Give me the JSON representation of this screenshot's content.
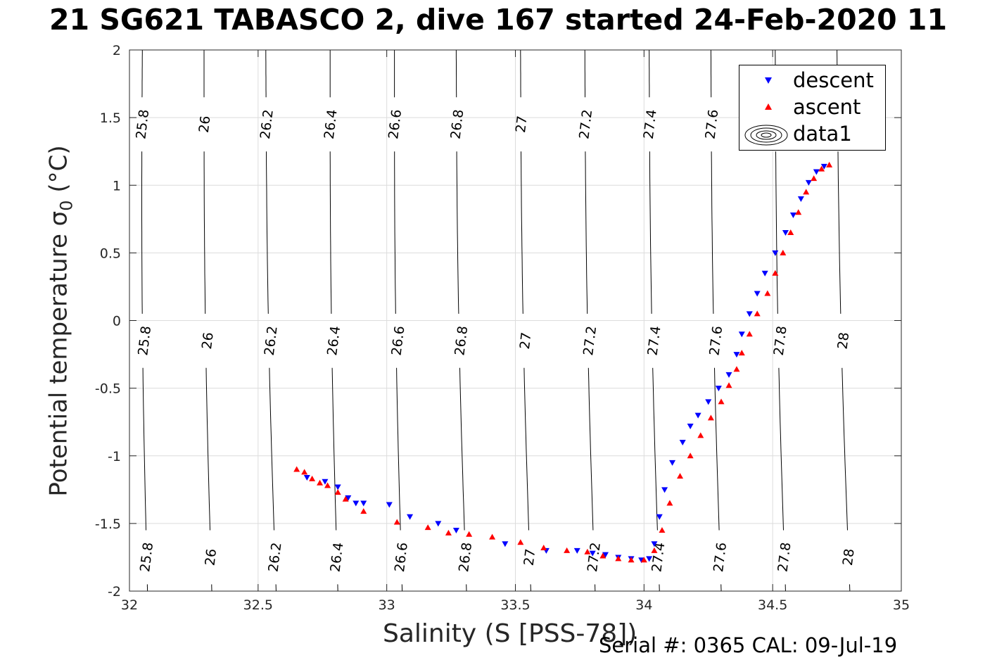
{
  "title": "21 SG621 TABASCO 2, dive 167 started 24-Feb-2020 11",
  "footer": "Serial #: 0365  CAL: 09-Jul-19",
  "chart_data": {
    "type": "scatter",
    "title": "21 SG621 TABASCO 2, dive 167 started 24-Feb-2020 11",
    "xlabel": "Salinity (S [PSS-78])",
    "ylabel_main": "Potential temperature σ",
    "ylabel_sub": "0",
    "ylabel_unit": " (°C)",
    "xlim": [
      32,
      35
    ],
    "ylim": [
      -2,
      2
    ],
    "xticks": [
      32,
      32.5,
      33,
      33.5,
      34,
      34.5,
      35
    ],
    "yticks": [
      2,
      1.5,
      1,
      0.5,
      0,
      -0.5,
      -1,
      -1.5,
      -2
    ],
    "grid": true,
    "legend_position": "top-right",
    "legend": [
      "descent",
      "ascent",
      "data1"
    ],
    "contours": {
      "levels": [
        25.8,
        26,
        26.2,
        26.4,
        26.6,
        26.8,
        27,
        27.2,
        27.4,
        27.6,
        27.8,
        28
      ],
      "salinity_at_bottom": [
        32.07,
        32.32,
        32.57,
        32.81,
        33.06,
        33.31,
        33.56,
        33.81,
        34.06,
        34.3,
        34.55,
        34.8
      ],
      "salinity_at_top": [
        32.05,
        32.29,
        32.53,
        32.78,
        33.03,
        33.27,
        33.52,
        33.77,
        34.02,
        34.26,
        34.51,
        34.75
      ],
      "label_rows_temperature": [
        -1.75,
        -0.15,
        1.45
      ]
    },
    "series": [
      {
        "name": "descent",
        "color": "#0000ff",
        "marker": "triangle-down",
        "points": [
          [
            32.69,
            -1.16
          ],
          [
            32.76,
            -1.19
          ],
          [
            32.81,
            -1.23
          ],
          [
            32.85,
            -1.31
          ],
          [
            32.88,
            -1.35
          ],
          [
            32.91,
            -1.35
          ],
          [
            33.01,
            -1.36
          ],
          [
            33.09,
            -1.45
          ],
          [
            33.2,
            -1.5
          ],
          [
            33.27,
            -1.55
          ],
          [
            33.46,
            -1.65
          ],
          [
            33.62,
            -1.7
          ],
          [
            33.74,
            -1.7
          ],
          [
            33.8,
            -1.72
          ],
          [
            33.85,
            -1.73
          ],
          [
            33.9,
            -1.75
          ],
          [
            33.95,
            -1.76
          ],
          [
            33.99,
            -1.77
          ],
          [
            34.02,
            -1.76
          ],
          [
            34.04,
            -1.65
          ],
          [
            34.06,
            -1.45
          ],
          [
            34.08,
            -1.25
          ],
          [
            34.11,
            -1.05
          ],
          [
            34.15,
            -0.9
          ],
          [
            34.18,
            -0.78
          ],
          [
            34.21,
            -0.7
          ],
          [
            34.25,
            -0.6
          ],
          [
            34.29,
            -0.5
          ],
          [
            34.33,
            -0.4
          ],
          [
            34.36,
            -0.25
          ],
          [
            34.38,
            -0.1
          ],
          [
            34.41,
            0.05
          ],
          [
            34.44,
            0.2
          ],
          [
            34.47,
            0.35
          ],
          [
            34.51,
            0.5
          ],
          [
            34.55,
            0.65
          ],
          [
            34.58,
            0.78
          ],
          [
            34.61,
            0.9
          ],
          [
            34.64,
            1.02
          ],
          [
            34.67,
            1.1
          ],
          [
            34.7,
            1.14
          ]
        ]
      },
      {
        "name": "ascent",
        "color": "#ff0000",
        "marker": "triangle-up",
        "points": [
          [
            32.65,
            -1.1
          ],
          [
            32.68,
            -1.12
          ],
          [
            32.71,
            -1.17
          ],
          [
            32.74,
            -1.2
          ],
          [
            32.77,
            -1.22
          ],
          [
            32.81,
            -1.27
          ],
          [
            32.84,
            -1.32
          ],
          [
            32.91,
            -1.41
          ],
          [
            33.04,
            -1.49
          ],
          [
            33.16,
            -1.53
          ],
          [
            33.24,
            -1.57
          ],
          [
            33.32,
            -1.58
          ],
          [
            33.41,
            -1.6
          ],
          [
            33.52,
            -1.64
          ],
          [
            33.61,
            -1.68
          ],
          [
            33.7,
            -1.7
          ],
          [
            33.78,
            -1.71
          ],
          [
            33.84,
            -1.74
          ],
          [
            33.9,
            -1.76
          ],
          [
            33.95,
            -1.77
          ],
          [
            34.0,
            -1.77
          ],
          [
            34.04,
            -1.7
          ],
          [
            34.07,
            -1.55
          ],
          [
            34.1,
            -1.35
          ],
          [
            34.14,
            -1.15
          ],
          [
            34.18,
            -1.0
          ],
          [
            34.22,
            -0.85
          ],
          [
            34.26,
            -0.72
          ],
          [
            34.3,
            -0.6
          ],
          [
            34.33,
            -0.48
          ],
          [
            34.36,
            -0.36
          ],
          [
            34.38,
            -0.24
          ],
          [
            34.41,
            -0.1
          ],
          [
            34.44,
            0.05
          ],
          [
            34.48,
            0.2
          ],
          [
            34.51,
            0.35
          ],
          [
            34.54,
            0.5
          ],
          [
            34.57,
            0.65
          ],
          [
            34.6,
            0.8
          ],
          [
            34.63,
            0.95
          ],
          [
            34.66,
            1.05
          ],
          [
            34.69,
            1.12
          ],
          [
            34.72,
            1.15
          ]
        ]
      }
    ]
  }
}
